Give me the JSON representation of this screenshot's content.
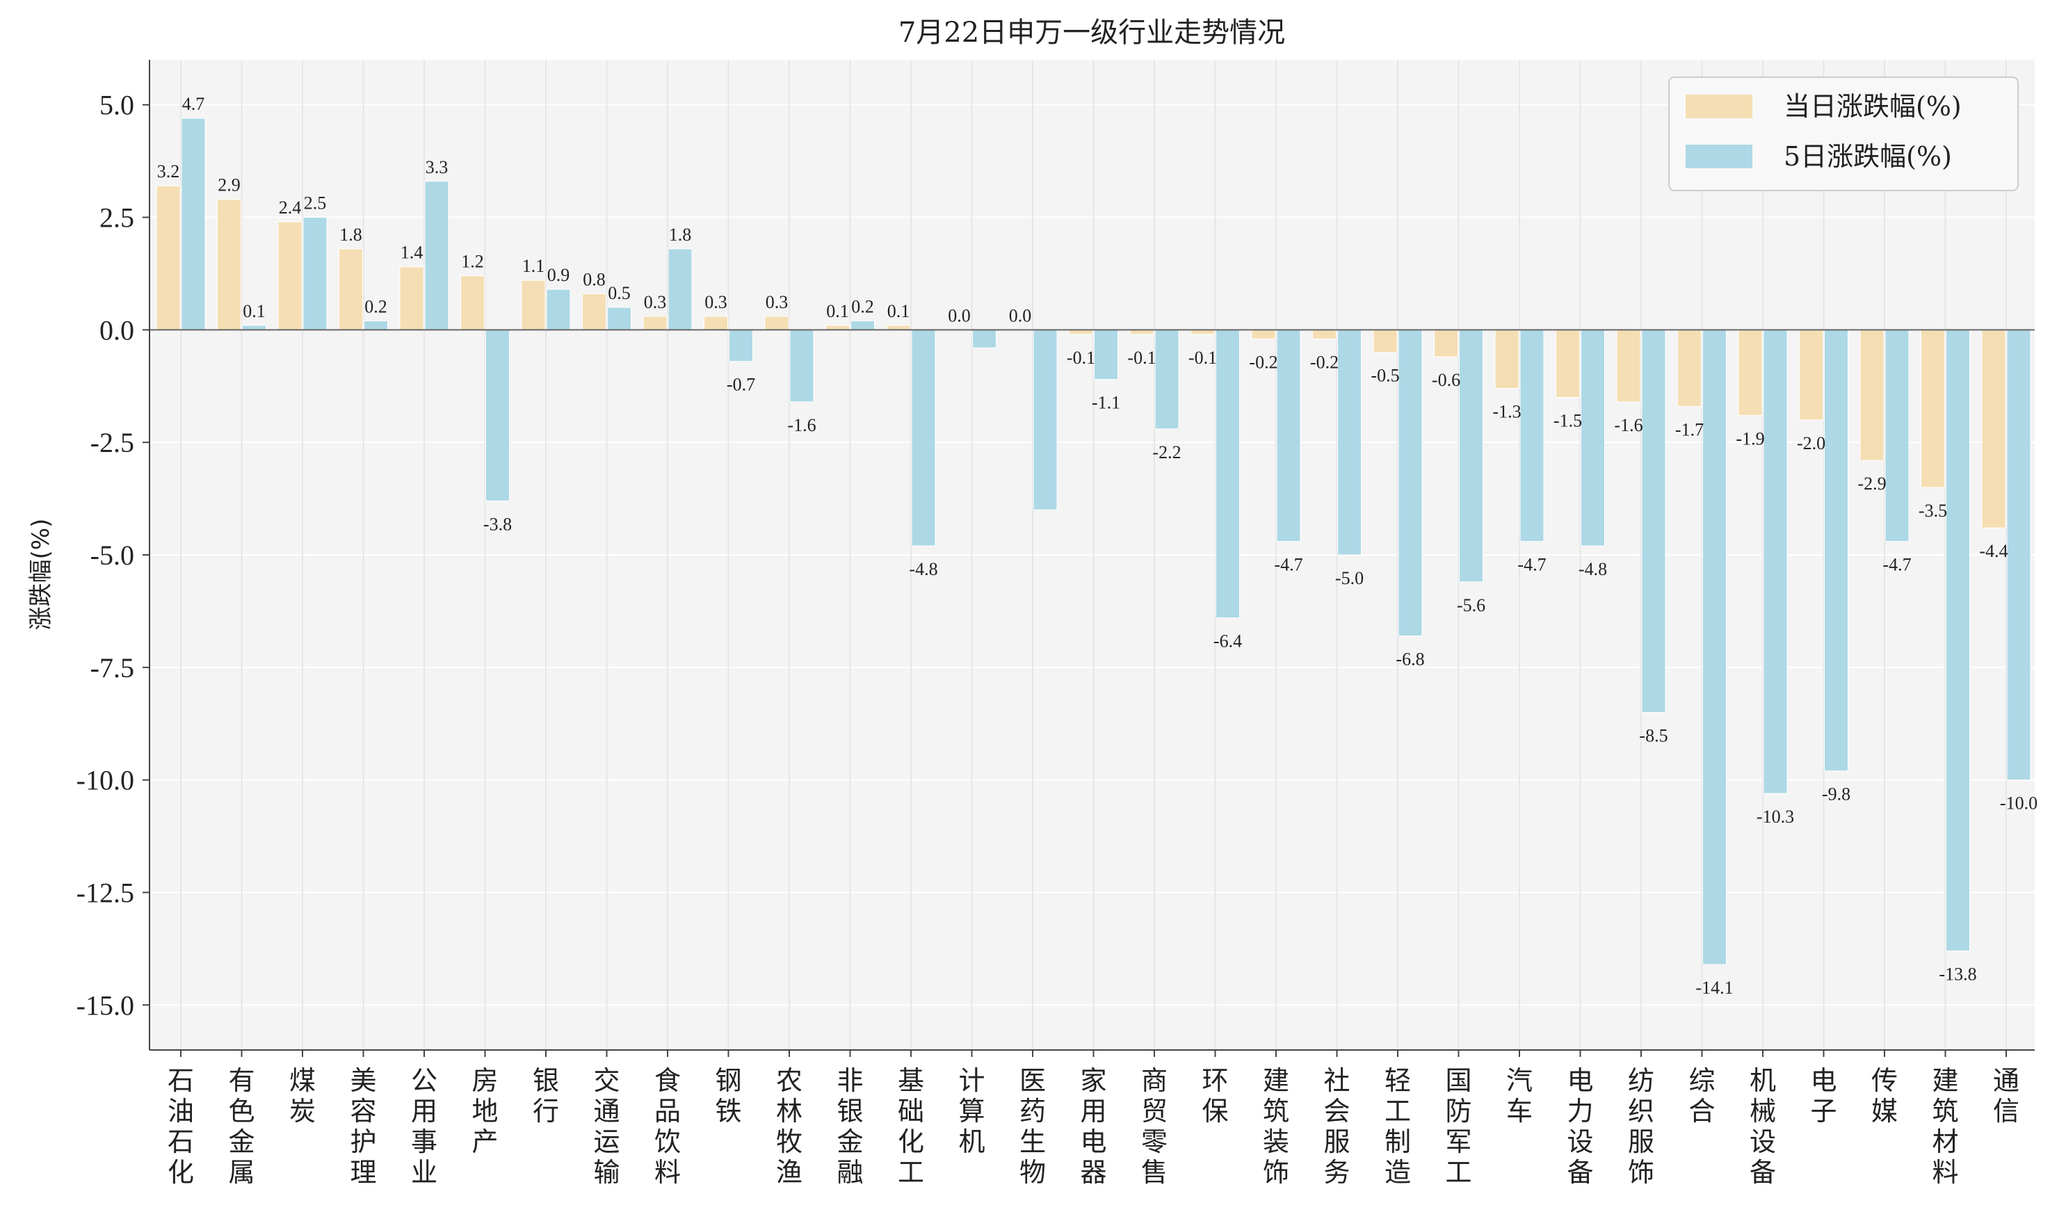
{
  "chart_data": {
    "type": "bar",
    "title": "7月22日申万一级行业走势情况",
    "xlabel": "",
    "ylabel": "涨跌幅(%)",
    "ylim": [
      -16,
      6
    ],
    "yticks": [
      "5.0",
      "2.5",
      "0.0",
      "-2.5",
      "-5.0",
      "-7.5",
      "-10.0",
      "-12.5",
      "-15.0"
    ],
    "ytick_values": [
      5,
      2.5,
      0,
      -2.5,
      -5,
      -7.5,
      -10,
      -12.5,
      -15
    ],
    "grid": true,
    "legend_position": "top-right",
    "categories": [
      "石油石化",
      "有色金属",
      "煤炭",
      "美容护理",
      "公用事业",
      "房地产",
      "银行",
      "交通运输",
      "食品饮料",
      "钢铁",
      "农林牧渔",
      "非银金融",
      "基础化工",
      "计算机",
      "医药生物",
      "家用电器",
      "商贸零售",
      "环保",
      "建筑装饰",
      "社会服务",
      "轻工制造",
      "国防军工",
      "汽车",
      "电力设备",
      "纺织服饰",
      "综合",
      "机械设备",
      "电子",
      "传媒",
      "建筑材料",
      "通信"
    ],
    "series": [
      {
        "name": "当日涨跌幅(%)",
        "color": "#f5deb3",
        "values": [
          3.2,
          2.9,
          2.4,
          1.8,
          1.4,
          1.2,
          1.1,
          0.8,
          0.3,
          0.3,
          0.3,
          0.1,
          0.1,
          0.0,
          0.0,
          -0.1,
          -0.1,
          -0.1,
          -0.2,
          -0.2,
          -0.5,
          -0.6,
          -1.3,
          -1.5,
          -1.6,
          -1.7,
          -1.9,
          -2.0,
          -2.9,
          -3.5,
          -4.4
        ],
        "labels": [
          "3.2",
          "2.9",
          "2.4",
          "1.8",
          "1.4",
          "1.2",
          "1.1",
          "0.8",
          "0.3",
          "0.3",
          "0.3",
          "0.1",
          "0.1",
          "0.0",
          "0.0",
          "-0.1",
          "-0.1",
          "-0.1",
          "-0.2",
          "-0.2",
          "-0.5",
          "-0.6",
          "-1.3",
          "-1.5",
          "-1.6",
          "-1.7",
          "-1.9",
          "-2.0",
          "-2.9",
          "-3.5",
          "-4.4"
        ]
      },
      {
        "name": "5日涨跌幅(%)",
        "color": "#add8e6",
        "values": [
          4.7,
          0.1,
          2.5,
          0.2,
          3.3,
          -3.8,
          0.9,
          0.5,
          1.8,
          -0.7,
          -1.6,
          0.2,
          -4.8,
          -0.4,
          -4.0,
          -1.1,
          -2.2,
          -6.4,
          -4.7,
          -5.0,
          -6.8,
          -5.6,
          -4.7,
          -4.8,
          -8.5,
          -14.1,
          -10.3,
          -9.8,
          -4.7,
          -13.8,
          -10.0
        ],
        "labels": [
          "4.7",
          "0.1",
          "2.5",
          "0.2",
          "3.3",
          "-3.8",
          "0.9",
          "0.5",
          "1.8",
          "-0.7",
          "-1.6",
          "0.2",
          "-4.8",
          "-0.4",
          "-4.0",
          "-1.1",
          "-2.2",
          "-6.4",
          "-4.7",
          "-5.0",
          "-6.8",
          "-5.6",
          "-4.7",
          "-4.8",
          "-8.5",
          "-14.1",
          "-10.3",
          "-9.8",
          "-4.7",
          "-13.8",
          "-10.0"
        ],
        "hidden_labels": [
          13,
          14
        ]
      }
    ]
  }
}
